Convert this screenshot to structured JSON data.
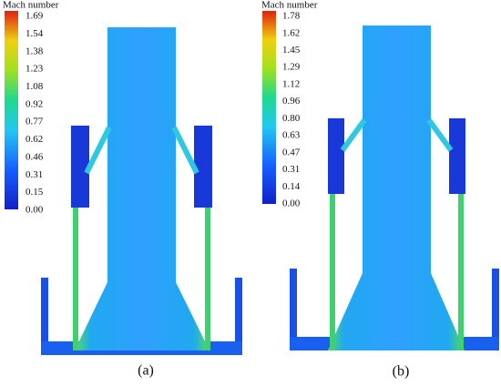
{
  "panels": [
    {
      "legend_title": "Mach number",
      "legend_labels": [
        "1.69",
        "1.54",
        "1.38",
        "1.23",
        "1.08",
        "0.92",
        "0.77",
        "0.62",
        "0.46",
        "0.31",
        "0.15",
        "0.00"
      ],
      "caption": "(a)"
    },
    {
      "legend_title": "Mach number",
      "legend_labels": [
        "1.78",
        "1.62",
        "1.45",
        "1.29",
        "1.12",
        "0.96",
        "0.80",
        "0.63",
        "0.47",
        "0.31",
        "0.14",
        "0.00"
      ],
      "caption": "(b)"
    }
  ]
}
